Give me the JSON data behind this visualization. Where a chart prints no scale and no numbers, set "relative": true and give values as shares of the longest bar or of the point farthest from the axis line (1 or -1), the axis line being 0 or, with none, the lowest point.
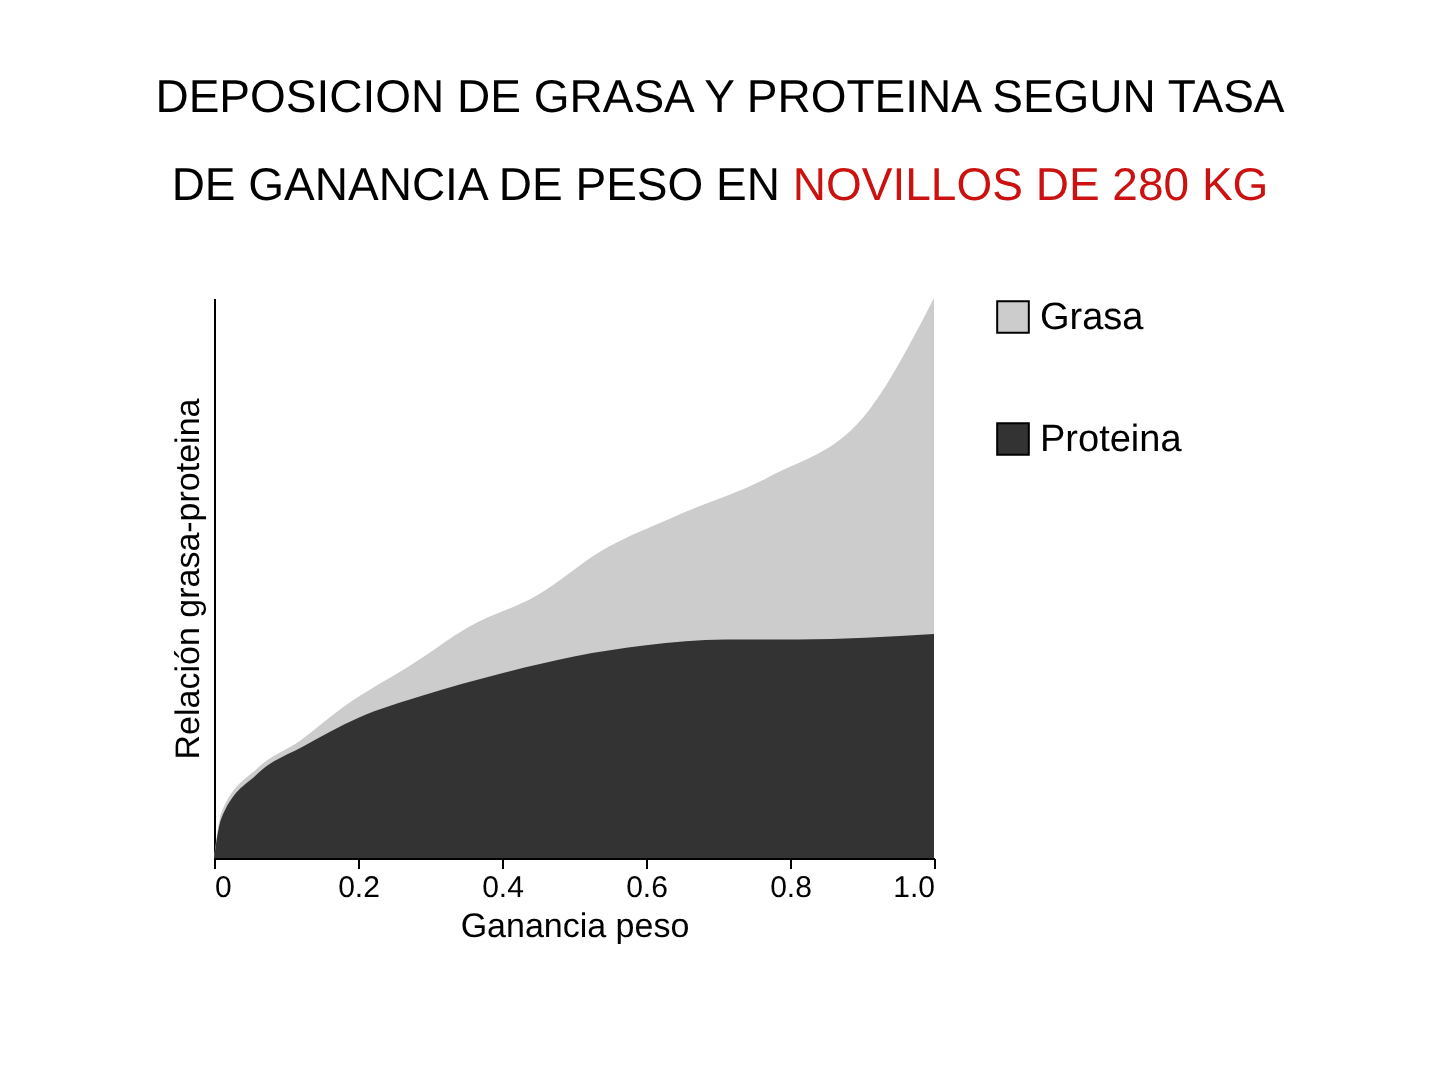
{
  "chart_data": {
    "type": "area",
    "title": "DEPOSICION DE GRASA Y PROTEINA SEGUN TASA DE GANANCIA DE PESO EN",
    "subtitle": "NOVILLOS DE 280 KG",
    "xlabel": "Ganancia peso",
    "ylabel": "Relación grasa-proteina",
    "relative": true,
    "xlim": [
      0,
      1
    ],
    "xticks": [
      0,
      0.2,
      0.4,
      0.6,
      0.8,
      {
        "value": 1,
        "label": "1.0"
      }
    ],
    "legend": "right",
    "series": [
      {
        "name": "Grasa",
        "color": "#cccccc",
        "x": [
          0,
          0.01,
          0.06,
          0.12,
          0.18,
          0.28,
          0.35,
          0.45,
          0.54,
          0.64,
          0.77,
          0.91,
          1.0
        ],
        "values": [
          0,
          0.08,
          0.16,
          0.21,
          0.27,
          0.35,
          0.41,
          0.47,
          0.55,
          0.61,
          0.68,
          0.8,
          1.0
        ]
      },
      {
        "name": "Proteina",
        "color": "#333333",
        "x": [
          0,
          0.01,
          0.06,
          0.125,
          0.2,
          0.29,
          0.4,
          0.5,
          0.6,
          0.71,
          0.81,
          1.0
        ],
        "values": [
          0,
          0.07,
          0.15,
          0.2,
          0.25,
          0.29,
          0.33,
          0.36,
          0.38,
          0.39,
          0.39,
          0.4
        ]
      }
    ]
  }
}
